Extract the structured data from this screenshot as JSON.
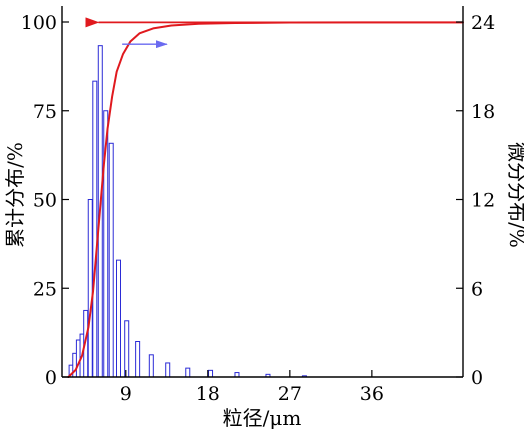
{
  "chart_data": {
    "type": "bar+line",
    "xlabel": "粒径/μm",
    "ylabel_left": "累计分布/%",
    "ylabel_right": "微分分布/%",
    "x_ticks": [
      9,
      18,
      27,
      36
    ],
    "x_range": [
      2,
      46
    ],
    "y_left_ticks": [
      0,
      25,
      50,
      75,
      100
    ],
    "y_left_range": [
      0,
      100
    ],
    "y_right_ticks": [
      0,
      6,
      12,
      18,
      24
    ],
    "y_right_range": [
      0,
      24
    ],
    "grid": false,
    "bar_series": {
      "axis": "right",
      "color": "#2b2bd6",
      "bars": [
        {
          "x": 3.0,
          "y": 0.8
        },
        {
          "x": 3.4,
          "y": 1.6
        },
        {
          "x": 3.8,
          "y": 2.5
        },
        {
          "x": 4.2,
          "y": 2.9
        },
        {
          "x": 4.6,
          "y": 4.5
        },
        {
          "x": 5.1,
          "y": 12.0
        },
        {
          "x": 5.6,
          "y": 20.0
        },
        {
          "x": 6.2,
          "y": 22.4
        },
        {
          "x": 6.8,
          "y": 18.0
        },
        {
          "x": 7.4,
          "y": 15.8
        },
        {
          "x": 8.2,
          "y": 7.9
        },
        {
          "x": 9.1,
          "y": 3.8
        },
        {
          "x": 10.3,
          "y": 2.4
        },
        {
          "x": 11.8,
          "y": 1.5
        },
        {
          "x": 13.6,
          "y": 0.95
        },
        {
          "x": 15.8,
          "y": 0.6
        },
        {
          "x": 18.3,
          "y": 0.45
        },
        {
          "x": 21.2,
          "y": 0.3
        },
        {
          "x": 24.6,
          "y": 0.18
        },
        {
          "x": 28.6,
          "y": 0.08
        }
      ]
    },
    "line_series": {
      "axis": "left",
      "color": "#e0191e",
      "points": [
        [
          2.7,
          0
        ],
        [
          3.5,
          2
        ],
        [
          4.2,
          6
        ],
        [
          4.9,
          14
        ],
        [
          5.4,
          24
        ],
        [
          5.8,
          36
        ],
        [
          6.2,
          48
        ],
        [
          6.6,
          60
        ],
        [
          7.0,
          70
        ],
        [
          7.5,
          79
        ],
        [
          8.0,
          86
        ],
        [
          8.7,
          91
        ],
        [
          9.5,
          94.5
        ],
        [
          10.5,
          96.8
        ],
        [
          12.0,
          98.2
        ],
        [
          14.0,
          99.0
        ],
        [
          17.0,
          99.5
        ],
        [
          21.0,
          99.7
        ],
        [
          27.0,
          99.85
        ],
        [
          35.0,
          99.9
        ],
        [
          46.0,
          99.9
        ]
      ]
    },
    "annotations": [
      {
        "kind": "arrow",
        "color": "#e0191e",
        "from": [
          46,
          99.9
        ],
        "to": [
          6.0,
          99.9
        ],
        "meaning": "cumulative curve reads on left axis"
      },
      {
        "kind": "arrow",
        "color": "#6a6af0",
        "from": [
          8.6,
          22.5
        ],
        "to": [
          13.5,
          22.5
        ],
        "meaning": "bars read on right axis"
      }
    ]
  }
}
